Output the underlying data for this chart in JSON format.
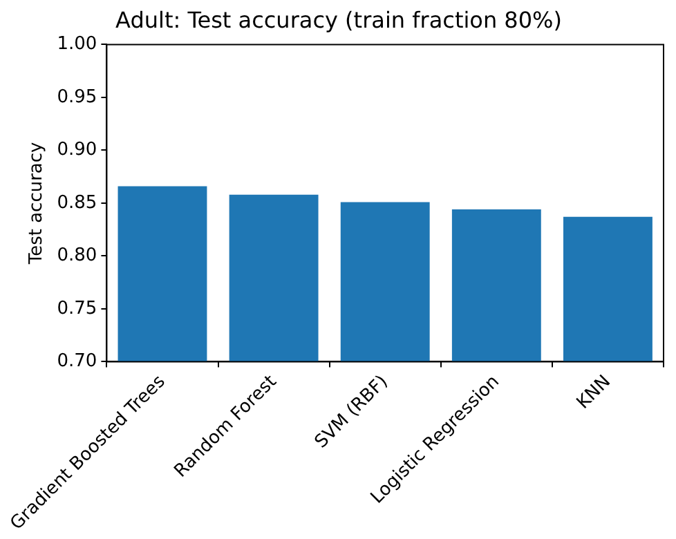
{
  "chart_data": {
    "type": "bar",
    "title": "Adult: Test accuracy (train fraction 80%)",
    "ylabel": "Test accuracy",
    "categories": [
      "Gradient Boosted Trees",
      "Random Forest",
      "SVM (RBF)",
      "Logistic Regression",
      "KNN"
    ],
    "values": [
      0.866,
      0.858,
      0.851,
      0.844,
      0.837
    ],
    "color": "#1f77b4",
    "ylim": [
      0.7,
      1.0
    ],
    "yticks": [
      {
        "value": 0.7,
        "label": "0.70"
      },
      {
        "value": 0.75,
        "label": "0.75"
      },
      {
        "value": 0.8,
        "label": "0.80"
      },
      {
        "value": 0.85,
        "label": "0.85"
      },
      {
        "value": 0.9,
        "label": "0.90"
      },
      {
        "value": 0.95,
        "label": "0.95"
      },
      {
        "value": 1.0,
        "label": "1.00"
      }
    ],
    "grid": false,
    "legend": false
  }
}
